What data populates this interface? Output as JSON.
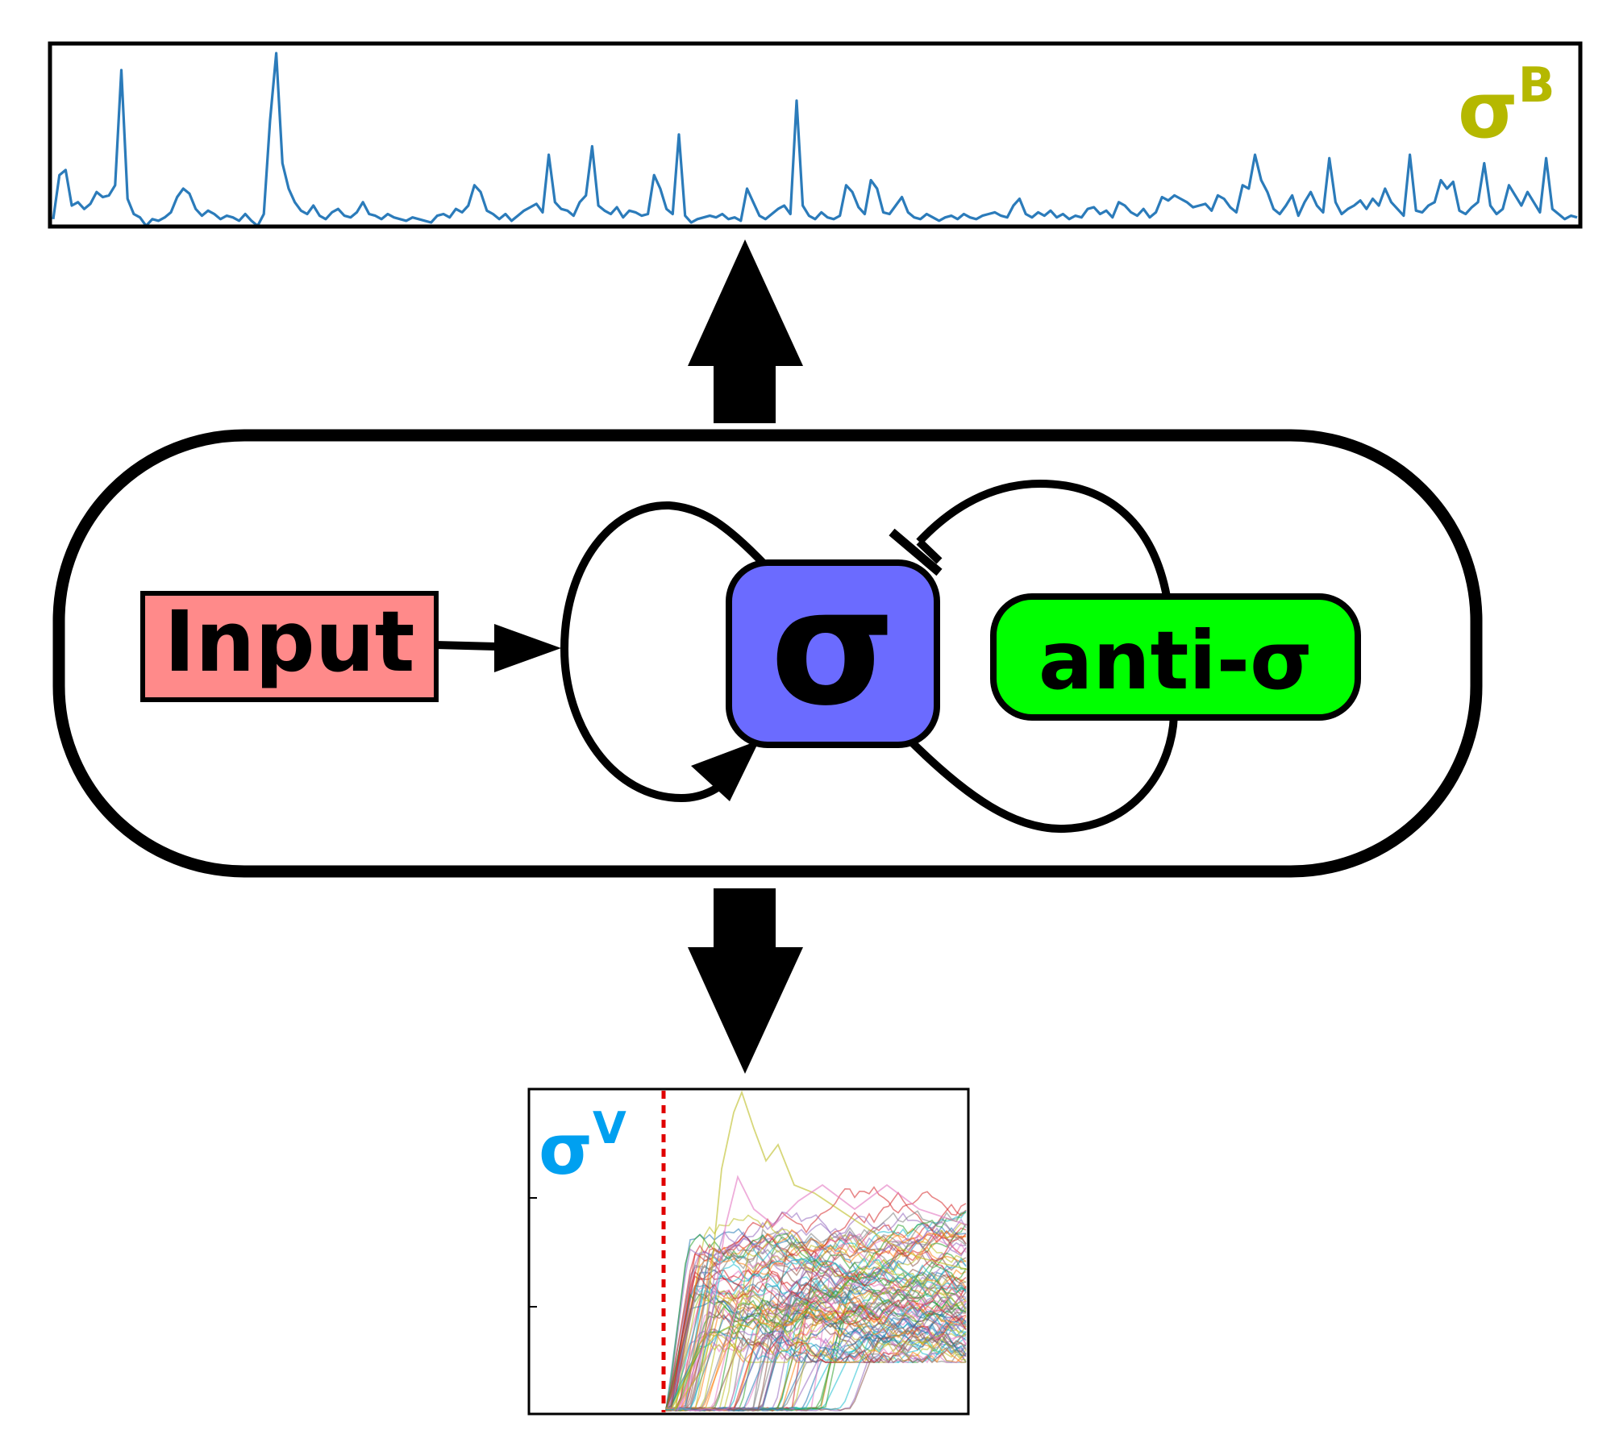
{
  "labels": {
    "sigma_b_base": "σ",
    "sigma_b_sup": "B",
    "sigma_v_base": "σ",
    "sigma_v_sup": "V",
    "input": "Input",
    "sigma": "σ",
    "anti_sigma": "anti-σ"
  },
  "colors": {
    "input_fill": "#ff8a8a",
    "sigma_fill": "#6b6bff",
    "anti_sigma_fill": "#00ff00",
    "sigma_b_label": "#b5b800",
    "sigma_v_label": "#00a0f0",
    "trace_line": "#2b7bba",
    "stimulus_line": "#e00000"
  },
  "chart_data": [
    {
      "type": "line",
      "title": "",
      "description_ref": "top trace",
      "series": [
        {
          "values": [
            0.02,
            0.28,
            0.31,
            0.1,
            0.12,
            0.08,
            0.11,
            0.18,
            0.15,
            0.16,
            0.22,
            0.9,
            0.14,
            0.05,
            0.03,
            -0.02,
            0.02,
            0.01,
            0.03,
            0.06,
            0.15,
            0.2,
            0.17,
            0.08,
            0.04,
            0.07,
            0.05,
            0.02,
            0.04,
            0.03,
            0.01,
            0.05,
            0.01,
            -0.02,
            0.05,
            0.6,
            1.0,
            0.35,
            0.2,
            0.12,
            0.07,
            0.05,
            0.1,
            0.04,
            0.02,
            0.06,
            0.08,
            0.04,
            0.03,
            0.06,
            0.12,
            0.05,
            0.04,
            0.02,
            0.05,
            0.03,
            0.02,
            0.01,
            0.03,
            0.02,
            0.01,
            0.0,
            0.04,
            0.05,
            0.03,
            0.08,
            0.06,
            0.1,
            0.22,
            0.18,
            0.07,
            0.05,
            0.02,
            0.05,
            0.01,
            0.04,
            0.07,
            0.09,
            0.11,
            0.06,
            0.4,
            0.12,
            0.08,
            0.07,
            0.04,
            0.12,
            0.16,
            0.45,
            0.1,
            0.07,
            0.05,
            0.09,
            0.03,
            0.07,
            0.06,
            0.04,
            0.05,
            0.28,
            0.2,
            0.08,
            0.05,
            0.52,
            0.04,
            0.0,
            0.02,
            0.03,
            0.04,
            0.03,
            0.05,
            0.02,
            0.03,
            0.01,
            0.2,
            0.12,
            0.04,
            0.02,
            0.05,
            0.08,
            0.1,
            0.05,
            0.72,
            0.1,
            0.04,
            0.02,
            0.06,
            0.03,
            0.02,
            0.04,
            0.22,
            0.18,
            0.09,
            0.05,
            0.25,
            0.2,
            0.06,
            0.05,
            0.1,
            0.15,
            0.06,
            0.03,
            0.02,
            0.05,
            0.03,
            0.01,
            0.03,
            0.04,
            0.02,
            0.05,
            0.03,
            0.02,
            0.04,
            0.05,
            0.06,
            0.04,
            0.03,
            0.1,
            0.14,
            0.05,
            0.03,
            0.06,
            0.04,
            0.07,
            0.03,
            0.05,
            0.02,
            0.04,
            0.03,
            0.08,
            0.09,
            0.05,
            0.07,
            0.03,
            0.12,
            0.1,
            0.06,
            0.04,
            0.08,
            0.03,
            0.06,
            0.15,
            0.13,
            0.16,
            0.14,
            0.12,
            0.09,
            0.1,
            0.11,
            0.07,
            0.16,
            0.14,
            0.09,
            0.06,
            0.22,
            0.2,
            0.4,
            0.25,
            0.18,
            0.08,
            0.05,
            0.1,
            0.16,
            0.04,
            0.12,
            0.18,
            0.1,
            0.06,
            0.38,
            0.12,
            0.05,
            0.08,
            0.1,
            0.13,
            0.08,
            0.14,
            0.1,
            0.2,
            0.12,
            0.08,
            0.04,
            0.4,
            0.07,
            0.06,
            0.1,
            0.12,
            0.25,
            0.2,
            0.24,
            0.07,
            0.05,
            0.09,
            0.12,
            0.35,
            0.1,
            0.05,
            0.08,
            0.22,
            0.16,
            0.1,
            0.18,
            0.12,
            0.06,
            0.38,
            0.08,
            0.05,
            0.02,
            0.04,
            0.03
          ]
        }
      ]
    },
    {
      "type": "line",
      "title": "",
      "description_ref": "bottom ensemble",
      "series_count": 100,
      "stimulus_marker": "dashed vertical line"
    }
  ]
}
